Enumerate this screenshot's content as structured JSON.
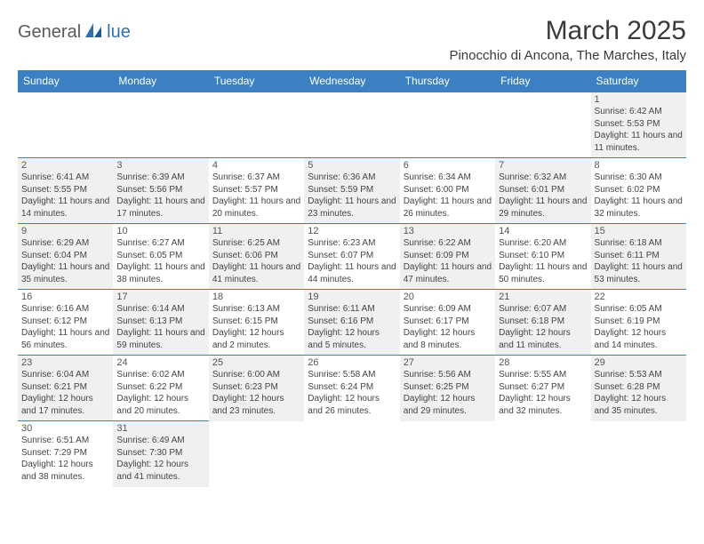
{
  "logo": {
    "text_a": "General",
    "text_b": "lue"
  },
  "title": "March 2025",
  "location": "Pinocchio di Ancona, The Marches, Italy",
  "colors": {
    "header_bg": "#3a80c3",
    "header_text": "#ffffff",
    "shaded_cell": "#f0f0f0",
    "border": "#3a80c3",
    "logo_blue": "#2f6fb0",
    "logo_gray": "#5a5a5a"
  },
  "day_headers": [
    "Sunday",
    "Monday",
    "Tuesday",
    "Wednesday",
    "Thursday",
    "Friday",
    "Saturday"
  ],
  "weeks": [
    [
      {
        "empty": true
      },
      {
        "empty": true
      },
      {
        "empty": true
      },
      {
        "empty": true
      },
      {
        "empty": true
      },
      {
        "empty": true
      },
      {
        "num": "1",
        "shaded": true,
        "sunrise": "Sunrise: 6:42 AM",
        "sunset": "Sunset: 5:53 PM",
        "daylight": "Daylight: 11 hours and 11 minutes."
      }
    ],
    [
      {
        "num": "2",
        "shaded": true,
        "sunrise": "Sunrise: 6:41 AM",
        "sunset": "Sunset: 5:55 PM",
        "daylight": "Daylight: 11 hours and 14 minutes."
      },
      {
        "num": "3",
        "shaded": true,
        "sunrise": "Sunrise: 6:39 AM",
        "sunset": "Sunset: 5:56 PM",
        "daylight": "Daylight: 11 hours and 17 minutes."
      },
      {
        "num": "4",
        "shaded": false,
        "sunrise": "Sunrise: 6:37 AM",
        "sunset": "Sunset: 5:57 PM",
        "daylight": "Daylight: 11 hours and 20 minutes."
      },
      {
        "num": "5",
        "shaded": true,
        "sunrise": "Sunrise: 6:36 AM",
        "sunset": "Sunset: 5:59 PM",
        "daylight": "Daylight: 11 hours and 23 minutes."
      },
      {
        "num": "6",
        "shaded": false,
        "sunrise": "Sunrise: 6:34 AM",
        "sunset": "Sunset: 6:00 PM",
        "daylight": "Daylight: 11 hours and 26 minutes."
      },
      {
        "num": "7",
        "shaded": true,
        "sunrise": "Sunrise: 6:32 AM",
        "sunset": "Sunset: 6:01 PM",
        "daylight": "Daylight: 11 hours and 29 minutes."
      },
      {
        "num": "8",
        "shaded": false,
        "sunrise": "Sunrise: 6:30 AM",
        "sunset": "Sunset: 6:02 PM",
        "daylight": "Daylight: 11 hours and 32 minutes."
      }
    ],
    [
      {
        "num": "9",
        "shaded": true,
        "sunrise": "Sunrise: 6:29 AM",
        "sunset": "Sunset: 6:04 PM",
        "daylight": "Daylight: 11 hours and 35 minutes."
      },
      {
        "num": "10",
        "shaded": false,
        "sunrise": "Sunrise: 6:27 AM",
        "sunset": "Sunset: 6:05 PM",
        "daylight": "Daylight: 11 hours and 38 minutes."
      },
      {
        "num": "11",
        "shaded": true,
        "sunrise": "Sunrise: 6:25 AM",
        "sunset": "Sunset: 6:06 PM",
        "daylight": "Daylight: 11 hours and 41 minutes."
      },
      {
        "num": "12",
        "shaded": false,
        "sunrise": "Sunrise: 6:23 AM",
        "sunset": "Sunset: 6:07 PM",
        "daylight": "Daylight: 11 hours and 44 minutes."
      },
      {
        "num": "13",
        "shaded": true,
        "sunrise": "Sunrise: 6:22 AM",
        "sunset": "Sunset: 6:09 PM",
        "daylight": "Daylight: 11 hours and 47 minutes."
      },
      {
        "num": "14",
        "shaded": false,
        "sunrise": "Sunrise: 6:20 AM",
        "sunset": "Sunset: 6:10 PM",
        "daylight": "Daylight: 11 hours and 50 minutes."
      },
      {
        "num": "15",
        "shaded": true,
        "sunrise": "Sunrise: 6:18 AM",
        "sunset": "Sunset: 6:11 PM",
        "daylight": "Daylight: 11 hours and 53 minutes."
      }
    ],
    [
      {
        "num": "16",
        "shaded": false,
        "sunrise": "Sunrise: 6:16 AM",
        "sunset": "Sunset: 6:12 PM",
        "daylight": "Daylight: 11 hours and 56 minutes."
      },
      {
        "num": "17",
        "shaded": true,
        "sunrise": "Sunrise: 6:14 AM",
        "sunset": "Sunset: 6:13 PM",
        "daylight": "Daylight: 11 hours and 59 minutes."
      },
      {
        "num": "18",
        "shaded": false,
        "sunrise": "Sunrise: 6:13 AM",
        "sunset": "Sunset: 6:15 PM",
        "daylight": "Daylight: 12 hours and 2 minutes."
      },
      {
        "num": "19",
        "shaded": true,
        "sunrise": "Sunrise: 6:11 AM",
        "sunset": "Sunset: 6:16 PM",
        "daylight": "Daylight: 12 hours and 5 minutes."
      },
      {
        "num": "20",
        "shaded": false,
        "sunrise": "Sunrise: 6:09 AM",
        "sunset": "Sunset: 6:17 PM",
        "daylight": "Daylight: 12 hours and 8 minutes."
      },
      {
        "num": "21",
        "shaded": true,
        "sunrise": "Sunrise: 6:07 AM",
        "sunset": "Sunset: 6:18 PM",
        "daylight": "Daylight: 12 hours and 11 minutes."
      },
      {
        "num": "22",
        "shaded": false,
        "sunrise": "Sunrise: 6:05 AM",
        "sunset": "Sunset: 6:19 PM",
        "daylight": "Daylight: 12 hours and 14 minutes."
      }
    ],
    [
      {
        "num": "23",
        "shaded": true,
        "sunrise": "Sunrise: 6:04 AM",
        "sunset": "Sunset: 6:21 PM",
        "daylight": "Daylight: 12 hours and 17 minutes."
      },
      {
        "num": "24",
        "shaded": false,
        "sunrise": "Sunrise: 6:02 AM",
        "sunset": "Sunset: 6:22 PM",
        "daylight": "Daylight: 12 hours and 20 minutes."
      },
      {
        "num": "25",
        "shaded": true,
        "sunrise": "Sunrise: 6:00 AM",
        "sunset": "Sunset: 6:23 PM",
        "daylight": "Daylight: 12 hours and 23 minutes."
      },
      {
        "num": "26",
        "shaded": false,
        "sunrise": "Sunrise: 5:58 AM",
        "sunset": "Sunset: 6:24 PM",
        "daylight": "Daylight: 12 hours and 26 minutes."
      },
      {
        "num": "27",
        "shaded": true,
        "sunrise": "Sunrise: 5:56 AM",
        "sunset": "Sunset: 6:25 PM",
        "daylight": "Daylight: 12 hours and 29 minutes."
      },
      {
        "num": "28",
        "shaded": false,
        "sunrise": "Sunrise: 5:55 AM",
        "sunset": "Sunset: 6:27 PM",
        "daylight": "Daylight: 12 hours and 32 minutes."
      },
      {
        "num": "29",
        "shaded": true,
        "sunrise": "Sunrise: 5:53 AM",
        "sunset": "Sunset: 6:28 PM",
        "daylight": "Daylight: 12 hours and 35 minutes."
      }
    ],
    [
      {
        "num": "30",
        "shaded": false,
        "sunrise": "Sunrise: 6:51 AM",
        "sunset": "Sunset: 7:29 PM",
        "daylight": "Daylight: 12 hours and 38 minutes."
      },
      {
        "num": "31",
        "shaded": true,
        "sunrise": "Sunrise: 6:49 AM",
        "sunset": "Sunset: 7:30 PM",
        "daylight": "Daylight: 12 hours and 41 minutes."
      },
      {
        "empty": true
      },
      {
        "empty": true
      },
      {
        "empty": true
      },
      {
        "empty": true
      },
      {
        "empty": true
      }
    ]
  ]
}
